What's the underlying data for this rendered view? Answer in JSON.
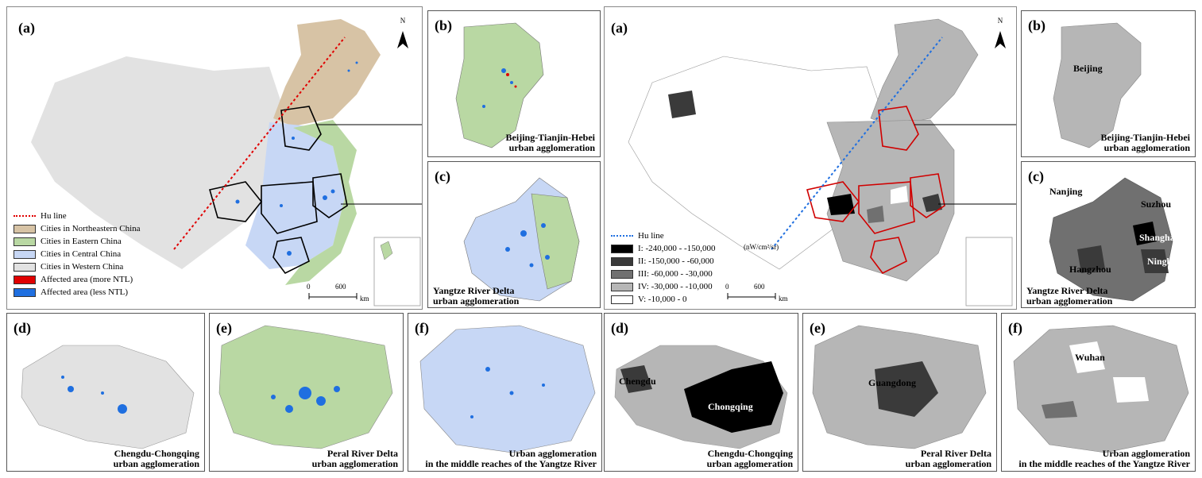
{
  "colors": {
    "northeastern": "#d7c3a5",
    "eastern": "#b9d8a3",
    "central": "#c7d7f5",
    "western": "#e2e2e2",
    "affected_more": "#e00000",
    "affected_less": "#1f6fe0",
    "hu_line_left": "#e00000",
    "hu_line_right": "#1f6fe0",
    "boundary_highlight_left": "#000000",
    "boundary_highlight_right": "#d00000",
    "class_1": "#000000",
    "class_2": "#3a3a3a",
    "class_3": "#707070",
    "class_4": "#b6b6b6",
    "class_5": "#ffffff"
  },
  "left": {
    "a": {
      "label": "(a)",
      "north": "N",
      "scale_0": "0",
      "scale_600": "600",
      "scale_unit": "km"
    },
    "legend": [
      {
        "key": "hu",
        "label": "Hu line"
      },
      {
        "key": "northeastern",
        "label": "Cities in Northeastern China"
      },
      {
        "key": "eastern",
        "label": "Cities in Eastern China"
      },
      {
        "key": "central",
        "label": "Cities in Central China"
      },
      {
        "key": "western",
        "label": "Cities in Western China"
      },
      {
        "key": "affected_more",
        "label": "Affected area (more NTL)"
      },
      {
        "key": "affected_less",
        "label": "Affected area (less NTL)"
      }
    ],
    "b": {
      "label": "(b)",
      "caption_1": "Beijing-Tianjin-Hebei",
      "caption_2": "urban agglomeration"
    },
    "c": {
      "label": "(c)",
      "caption_1": "Yangtze River Delta",
      "caption_2": "urban agglomeration"
    },
    "d": {
      "label": "(d)",
      "caption_1": "Chengdu-Chongqing",
      "caption_2": "urban agglomeration"
    },
    "e": {
      "label": "(e)",
      "caption_1": "Peral River Delta",
      "caption_2": "urban agglomeration"
    },
    "f": {
      "label": "(f)",
      "caption_1": "Urban agglomeration",
      "caption_2": "in the middle reaches of the Yangtze River"
    }
  },
  "right": {
    "a": {
      "label": "(a)",
      "north": "N",
      "scale_0": "0",
      "scale_600": "600",
      "scale_unit": "km",
      "unit": "(nW/cm²/sr)"
    },
    "legend": [
      {
        "key": "hu",
        "label": "Hu line"
      },
      {
        "key": "class_1",
        "label": "I: -240,000 - -150,000"
      },
      {
        "key": "class_2",
        "label": "II: -150,000 - -60,000"
      },
      {
        "key": "class_3",
        "label": "III: -60,000 - -30,000"
      },
      {
        "key": "class_4",
        "label": "IV: -30,000 - -10,000"
      },
      {
        "key": "class_5",
        "label": "V: -10,000 - 0"
      }
    ],
    "b": {
      "label": "(b)",
      "city": "Beijing",
      "caption_1": "Beijing-Tianjin-Hebei",
      "caption_2": "urban agglomeration"
    },
    "c": {
      "label": "(c)",
      "cities": [
        "Nanjing",
        "Suzhou",
        "Shanghai",
        "Hangzhou",
        "Ningbo"
      ],
      "caption_1": "Yangtze River Delta",
      "caption_2": "urban agglomeration"
    },
    "d": {
      "label": "(d)",
      "cities": [
        "Chengdu",
        "Chongqing"
      ],
      "caption_1": "Chengdu-Chongqing",
      "caption_2": "urban agglomeration"
    },
    "e": {
      "label": "(e)",
      "city": "Guangdong",
      "caption_1": "Peral River Delta",
      "caption_2": "urban agglomeration"
    },
    "f": {
      "label": "(f)",
      "city": "Wuhan",
      "caption_1": "Urban agglomeration",
      "caption_2": "in the middle reaches of the Yangtze River"
    }
  }
}
